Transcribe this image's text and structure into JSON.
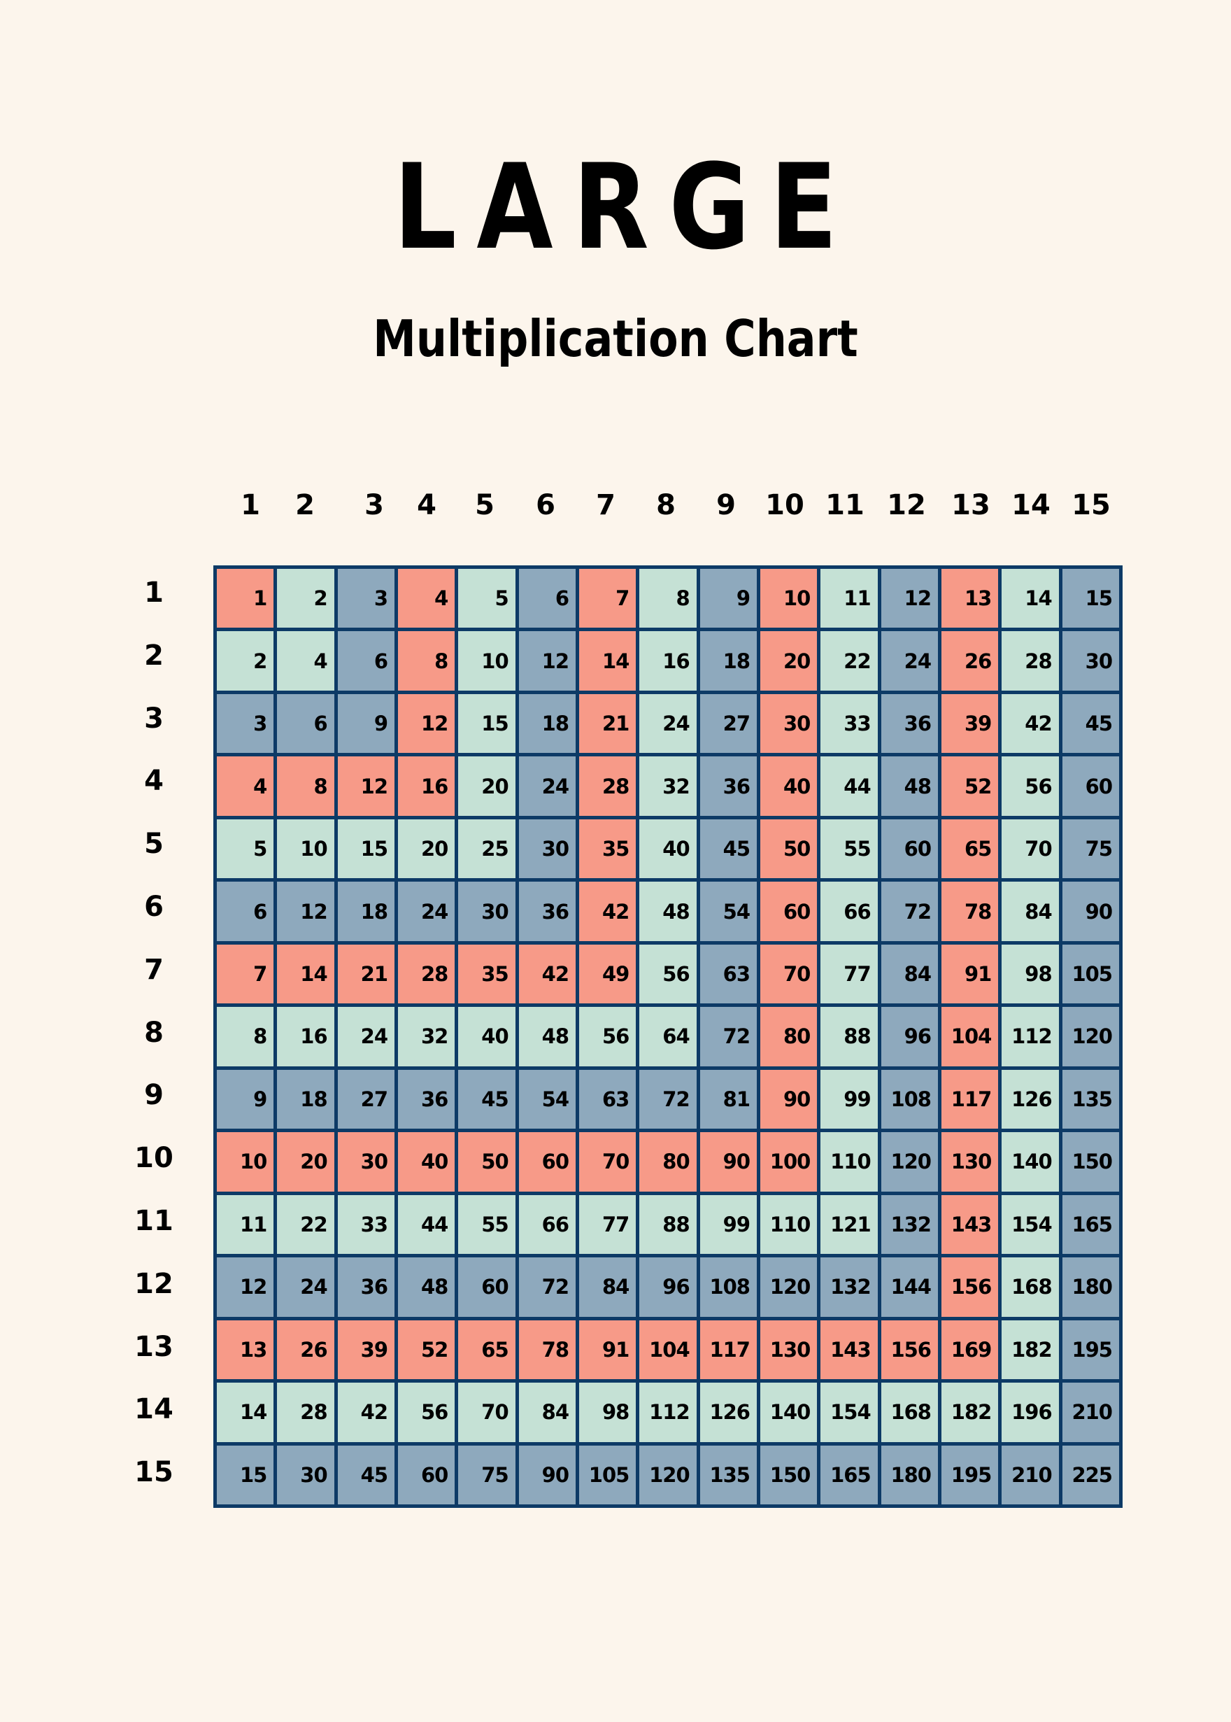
{
  "title": "LARGE",
  "subtitle": "Multiplication Chart",
  "colors": {
    "background": "#fcf5ec",
    "grid_border": "#0d3a66",
    "red": "#f79a88",
    "green": "#c5e1d5",
    "blue": "#8ea9bd"
  },
  "column_headers": [
    "1",
    "2",
    "3",
    "4",
    "5",
    "6",
    "7",
    "8",
    "9",
    "10",
    "11",
    "12",
    "13",
    "14",
    "15"
  ],
  "row_headers": [
    "1",
    "2",
    "3",
    "4",
    "5",
    "6",
    "7",
    "8",
    "9",
    "10",
    "11",
    "12",
    "13",
    "14",
    "15"
  ],
  "chart_data": {
    "type": "table",
    "title": "LARGE",
    "subtitle": "Multiplication Chart",
    "color_rule": "cell color determined by max(row, col) mod 3: 1 = red, 2 = green, 0 = blue",
    "columns": [
      1,
      2,
      3,
      4,
      5,
      6,
      7,
      8,
      9,
      10,
      11,
      12,
      13,
      14,
      15
    ],
    "rows": [
      [
        1,
        2,
        3,
        4,
        5,
        6,
        7,
        8,
        9,
        10,
        11,
        12,
        13,
        14,
        15
      ],
      [
        2,
        4,
        6,
        8,
        10,
        12,
        14,
        16,
        18,
        20,
        22,
        24,
        26,
        28,
        30
      ],
      [
        3,
        6,
        9,
        12,
        15,
        18,
        21,
        24,
        27,
        30,
        33,
        36,
        39,
        42,
        45
      ],
      [
        4,
        8,
        12,
        16,
        20,
        24,
        28,
        32,
        36,
        40,
        44,
        48,
        52,
        56,
        60
      ],
      [
        5,
        10,
        15,
        20,
        25,
        30,
        35,
        40,
        45,
        50,
        55,
        60,
        65,
        70,
        75
      ],
      [
        6,
        12,
        18,
        24,
        30,
        36,
        42,
        48,
        54,
        60,
        66,
        72,
        78,
        84,
        90
      ],
      [
        7,
        14,
        21,
        28,
        35,
        42,
        49,
        56,
        63,
        70,
        77,
        84,
        91,
        98,
        105
      ],
      [
        8,
        16,
        24,
        32,
        40,
        48,
        56,
        64,
        72,
        80,
        88,
        96,
        104,
        112,
        120
      ],
      [
        9,
        18,
        27,
        36,
        45,
        54,
        63,
        72,
        81,
        90,
        99,
        108,
        117,
        126,
        135
      ],
      [
        10,
        20,
        30,
        40,
        50,
        60,
        70,
        80,
        90,
        100,
        110,
        120,
        130,
        140,
        150
      ],
      [
        11,
        22,
        33,
        44,
        55,
        66,
        77,
        88,
        99,
        110,
        121,
        132,
        143,
        154,
        165
      ],
      [
        12,
        24,
        36,
        48,
        60,
        72,
        84,
        96,
        108,
        120,
        132,
        144,
        156,
        168,
        180
      ],
      [
        13,
        26,
        39,
        52,
        65,
        78,
        91,
        104,
        117,
        130,
        143,
        156,
        169,
        182,
        195
      ],
      [
        14,
        28,
        42,
        56,
        70,
        84,
        98,
        112,
        126,
        140,
        154,
        168,
        182,
        196,
        210
      ],
      [
        15,
        30,
        45,
        60,
        75,
        90,
        105,
        120,
        135,
        150,
        165,
        180,
        195,
        210,
        225
      ]
    ]
  }
}
